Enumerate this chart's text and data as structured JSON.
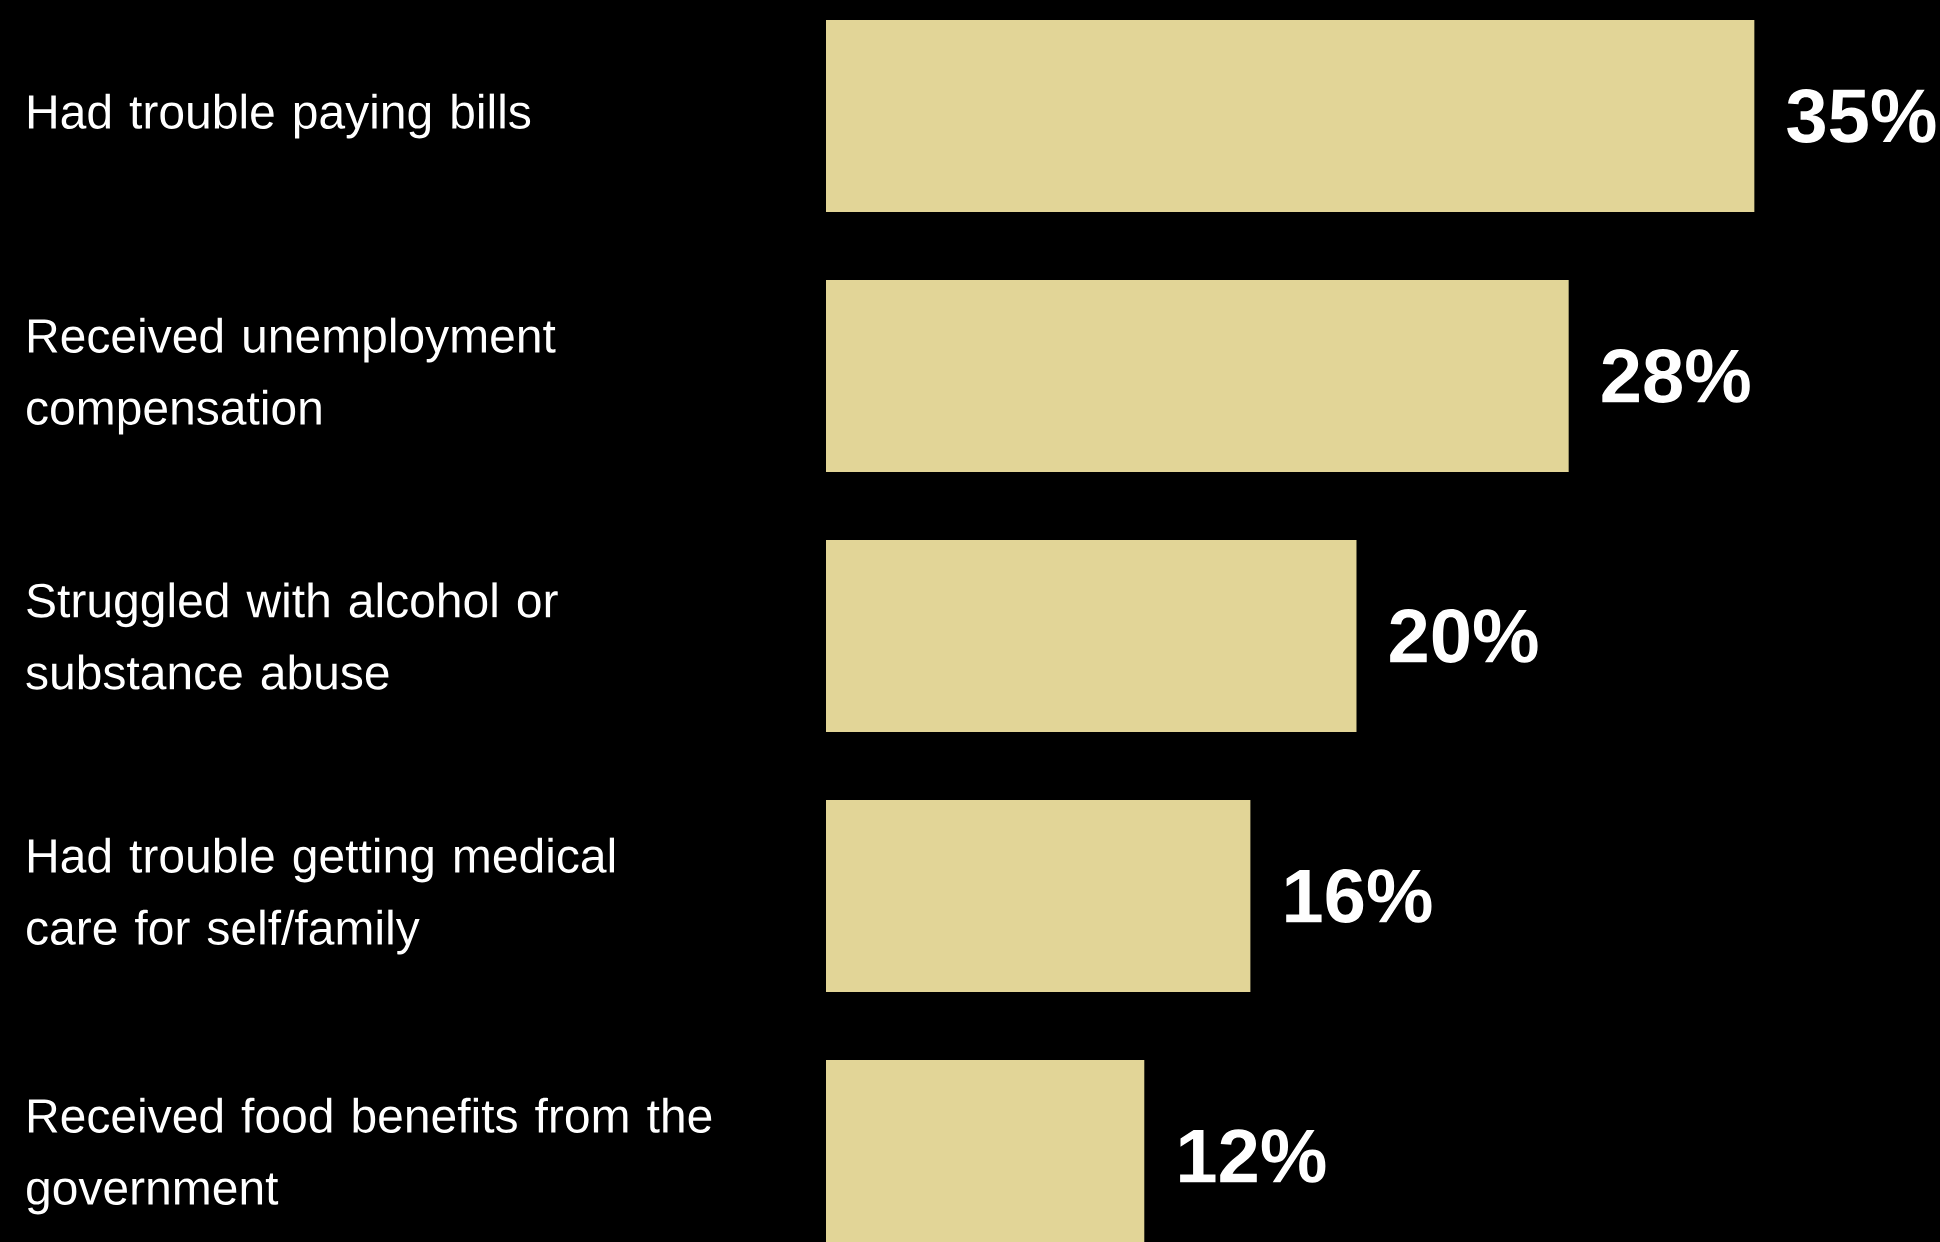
{
  "chart_data": {
    "type": "bar",
    "orientation": "horizontal",
    "categories": [
      "Had trouble paying bills",
      "Received unemployment compensation",
      "Struggled with alcohol or substance abuse",
      "Had trouble getting medical care for self/family",
      "Received food benefits from the government"
    ],
    "values": [
      35,
      28,
      20,
      16,
      12
    ],
    "value_labels": [
      "35%",
      "28%",
      "20%",
      "16%",
      "12%"
    ],
    "color": "#e2d597"
  }
}
